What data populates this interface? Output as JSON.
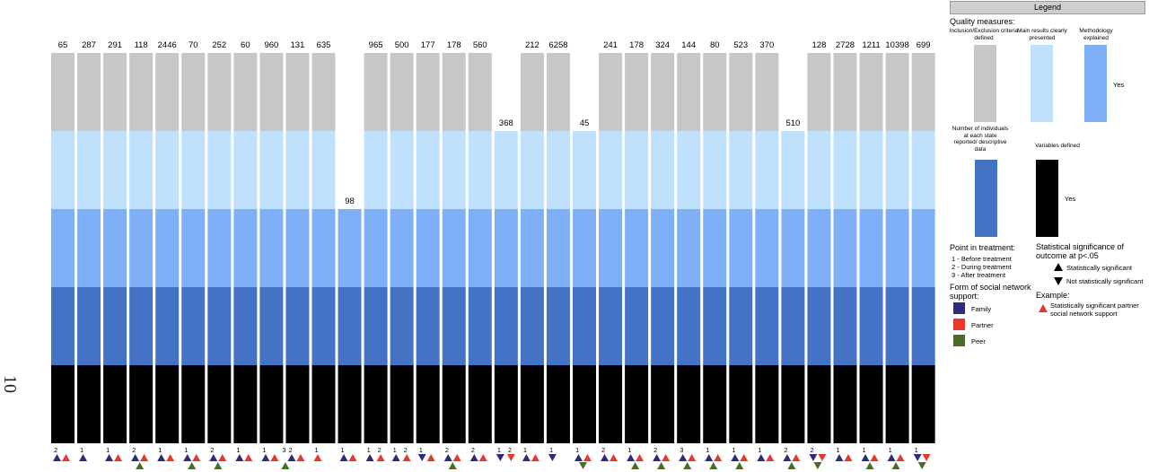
{
  "page_number": "10",
  "colors": {
    "inclusion": "#c9c7c5",
    "main_results": "#bfe1fd",
    "methodology": "#7fb0f7",
    "descriptive": "#4472c4",
    "variables": "#000000",
    "family": "#2e2a7e",
    "partner": "#e8382c",
    "peer": "#4a6b2a"
  },
  "legend": {
    "title": "Legend",
    "quality_heading": "Quality measures:",
    "inclusion_label": "Inclusion/Exclusion criteria defined",
    "main_results_label": "Main results clearly presented",
    "methodology_label": "Methodology explained",
    "yes_top": "Yes",
    "descriptive_label": "Number of individuals at each state reported/ descriptive data",
    "variables_label": "Variables defined",
    "yes_bottom": "Yes",
    "point_heading": "Point in treatment:",
    "point_1": "1 - Before treatment",
    "point_2": "2 - During treatment",
    "point_3": "3 - After treatment",
    "sig_heading": "Statistical significance of outcome at p<.05",
    "sig_yes": "Statistically significant",
    "sig_no": "Not statistically significant",
    "form_heading": "Form of social network support:",
    "family": "Family",
    "partner": "Partner",
    "peer": "Peer",
    "example_heading": "Example:",
    "example_text": "Statistically significant partner social network support"
  },
  "chart_data": {
    "type": "bar",
    "title": "",
    "segments": [
      "Variables defined",
      "Number of individuals at each state reported/descriptive data",
      "Methodology explained",
      "Main results clearly presented",
      "Inclusion/Exclusion criteria defined"
    ],
    "studies": [
      {
        "n": "65",
        "criteria_met": 5,
        "markers": [
          {
            "label": "2",
            "items": [
              {
                "form": "family",
                "sig": true
              },
              {
                "form": "partner",
                "sig": true
              }
            ]
          }
        ]
      },
      {
        "n": "287",
        "criteria_met": 5,
        "markers": [
          {
            "label": "1",
            "items": [
              {
                "form": "family",
                "sig": true
              }
            ]
          }
        ]
      },
      {
        "n": "291",
        "criteria_met": 5,
        "markers": [
          {
            "label": "1",
            "items": [
              {
                "form": "family",
                "sig": true
              },
              {
                "form": "partner",
                "sig": true
              }
            ]
          }
        ]
      },
      {
        "n": "118",
        "criteria_met": 5,
        "markers": [
          {
            "label": "2",
            "items": [
              {
                "form": "family",
                "sig": true
              },
              {
                "form": "partner",
                "sig": true
              },
              {
                "form": "peer",
                "sig": true
              }
            ]
          }
        ]
      },
      {
        "n": "2446",
        "criteria_met": 5,
        "markers": [
          {
            "label": "1",
            "items": [
              {
                "form": "family",
                "sig": true
              },
              {
                "form": "partner",
                "sig": true
              }
            ]
          }
        ]
      },
      {
        "n": "70",
        "criteria_met": 5,
        "markers": [
          {
            "label": "1",
            "items": [
              {
                "form": "family",
                "sig": true
              },
              {
                "form": "partner",
                "sig": true
              },
              {
                "form": "peer",
                "sig": true
              }
            ]
          }
        ]
      },
      {
        "n": "252",
        "criteria_met": 5,
        "markers": [
          {
            "label": "2",
            "items": [
              {
                "form": "family",
                "sig": true
              },
              {
                "form": "partner",
                "sig": true
              },
              {
                "form": "peer",
                "sig": true
              }
            ]
          }
        ]
      },
      {
        "n": "60",
        "criteria_met": 5,
        "markers": [
          {
            "label": "1",
            "items": [
              {
                "form": "family",
                "sig": true
              },
              {
                "form": "partner",
                "sig": true
              }
            ]
          }
        ]
      },
      {
        "n": "960",
        "criteria_met": 5,
        "markers": [
          {
            "label": "1",
            "items": [
              {
                "form": "family",
                "sig": true
              },
              {
                "form": "partner",
                "sig": true
              }
            ]
          },
          {
            "label": "3",
            "items": [
              {
                "form": "peer",
                "sig": true
              }
            ]
          }
        ]
      },
      {
        "n": "131",
        "criteria_met": 5,
        "markers": [
          {
            "label": "2",
            "items": [
              {
                "form": "family",
                "sig": true
              },
              {
                "form": "partner",
                "sig": true
              }
            ]
          }
        ]
      },
      {
        "n": "635",
        "criteria_met": 5,
        "markers": [
          {
            "label": "1",
            "items": [
              {
                "form": "partner",
                "sig": true
              }
            ]
          }
        ]
      },
      {
        "n": "98",
        "criteria_met": 3,
        "markers": [
          {
            "label": "1",
            "items": [
              {
                "form": "family",
                "sig": true
              },
              {
                "form": "partner",
                "sig": true
              }
            ]
          }
        ]
      },
      {
        "n": "965",
        "criteria_met": 5,
        "markers": [
          {
            "label": "1",
            "items": [
              {
                "form": "family",
                "sig": true
              }
            ]
          },
          {
            "label": "2",
            "items": [
              {
                "form": "partner",
                "sig": true
              }
            ]
          }
        ]
      },
      {
        "n": "500",
        "criteria_met": 5,
        "markers": [
          {
            "label": "1",
            "items": [
              {
                "form": "family",
                "sig": true
              }
            ]
          },
          {
            "label": "2",
            "items": [
              {
                "form": "partner",
                "sig": true
              }
            ]
          }
        ]
      },
      {
        "n": "177",
        "criteria_met": 5,
        "markers": [
          {
            "label": "1",
            "items": [
              {
                "form": "family",
                "sig": false
              },
              {
                "form": "partner",
                "sig": true
              }
            ]
          }
        ]
      },
      {
        "n": "178",
        "criteria_met": 5,
        "markers": [
          {
            "label": "2",
            "items": [
              {
                "form": "family",
                "sig": true
              },
              {
                "form": "partner",
                "sig": true
              },
              {
                "form": "peer",
                "sig": true
              }
            ]
          }
        ]
      },
      {
        "n": "560",
        "criteria_met": 5,
        "markers": [
          {
            "label": "2",
            "items": [
              {
                "form": "family",
                "sig": true
              },
              {
                "form": "partner",
                "sig": true
              }
            ]
          }
        ]
      },
      {
        "n": "368",
        "criteria_met": 4,
        "markers": [
          {
            "label": "1",
            "items": [
              {
                "form": "family",
                "sig": false
              }
            ]
          },
          {
            "label": "2",
            "items": [
              {
                "form": "partner",
                "sig": false
              }
            ]
          }
        ]
      },
      {
        "n": "212",
        "criteria_met": 5,
        "markers": [
          {
            "label": "1",
            "items": [
              {
                "form": "family",
                "sig": true
              },
              {
                "form": "partner",
                "sig": true
              }
            ]
          }
        ]
      },
      {
        "n": "6258",
        "criteria_met": 5,
        "markers": [
          {
            "label": "1",
            "items": [
              {
                "form": "family",
                "sig": false
              }
            ]
          }
        ]
      },
      {
        "n": "45",
        "criteria_met": 4,
        "markers": [
          {
            "label": "1",
            "items": [
              {
                "form": "family",
                "sig": true
              },
              {
                "form": "partner",
                "sig": true
              },
              {
                "form": "peer",
                "sig": false
              }
            ]
          }
        ]
      },
      {
        "n": "241",
        "criteria_met": 5,
        "markers": [
          {
            "label": "2",
            "items": [
              {
                "form": "family",
                "sig": true
              },
              {
                "form": "partner",
                "sig": true
              }
            ]
          }
        ]
      },
      {
        "n": "178",
        "criteria_met": 5,
        "markers": [
          {
            "label": "1",
            "items": [
              {
                "form": "family",
                "sig": true
              },
              {
                "form": "partner",
                "sig": true
              },
              {
                "form": "peer",
                "sig": true
              }
            ]
          }
        ]
      },
      {
        "n": "324",
        "criteria_met": 5,
        "markers": [
          {
            "label": "2",
            "items": [
              {
                "form": "family",
                "sig": true
              },
              {
                "form": "partner",
                "sig": true
              },
              {
                "form": "peer",
                "sig": true
              }
            ]
          }
        ]
      },
      {
        "n": "144",
        "criteria_met": 5,
        "markers": [
          {
            "label": "3",
            "items": [
              {
                "form": "family",
                "sig": true
              },
              {
                "form": "partner",
                "sig": true
              },
              {
                "form": "peer",
                "sig": true
              }
            ]
          }
        ]
      },
      {
        "n": "80",
        "criteria_met": 5,
        "markers": [
          {
            "label": "1",
            "items": [
              {
                "form": "family",
                "sig": true
              },
              {
                "form": "partner",
                "sig": true
              },
              {
                "form": "peer",
                "sig": true
              }
            ]
          }
        ]
      },
      {
        "n": "523",
        "criteria_met": 5,
        "markers": [
          {
            "label": "1",
            "items": [
              {
                "form": "family",
                "sig": true
              },
              {
                "form": "partner",
                "sig": true
              },
              {
                "form": "peer",
                "sig": true
              }
            ]
          }
        ]
      },
      {
        "n": "370",
        "criteria_met": 5,
        "markers": [
          {
            "label": "1",
            "items": [
              {
                "form": "family",
                "sig": true
              },
              {
                "form": "partner",
                "sig": true
              }
            ]
          }
        ]
      },
      {
        "n": "510",
        "criteria_met": 4,
        "markers": [
          {
            "label": "2",
            "items": [
              {
                "form": "family",
                "sig": true
              },
              {
                "form": "partner",
                "sig": true
              },
              {
                "form": "peer",
                "sig": true
              }
            ]
          }
        ]
      },
      {
        "n": "128",
        "criteria_met": 5,
        "markers": [
          {
            "label": "2",
            "items": [
              {
                "form": "family",
                "sig": false
              },
              {
                "form": "partner",
                "sig": false
              },
              {
                "form": "peer",
                "sig": false
              }
            ]
          }
        ]
      },
      {
        "n": "2728",
        "criteria_met": 5,
        "markers": [
          {
            "label": "1",
            "items": [
              {
                "form": "family",
                "sig": true
              },
              {
                "form": "partner",
                "sig": true
              }
            ]
          }
        ]
      },
      {
        "n": "1211",
        "criteria_met": 5,
        "markers": [
          {
            "label": "1",
            "items": [
              {
                "form": "family",
                "sig": true
              },
              {
                "form": "partner",
                "sig": true
              },
              {
                "form": "peer",
                "sig": true
              }
            ]
          }
        ]
      },
      {
        "n": "10398",
        "criteria_met": 5,
        "markers": [
          {
            "label": "1",
            "items": [
              {
                "form": "family",
                "sig": true
              },
              {
                "form": "partner",
                "sig": true
              },
              {
                "form": "peer",
                "sig": true
              }
            ]
          }
        ]
      },
      {
        "n": "699",
        "criteria_met": 5,
        "markers": [
          {
            "label": "1",
            "items": [
              {
                "form": "family",
                "sig": false
              },
              {
                "form": "partner",
                "sig": false
              },
              {
                "form": "peer",
                "sig": false
              }
            ]
          }
        ]
      }
    ]
  }
}
